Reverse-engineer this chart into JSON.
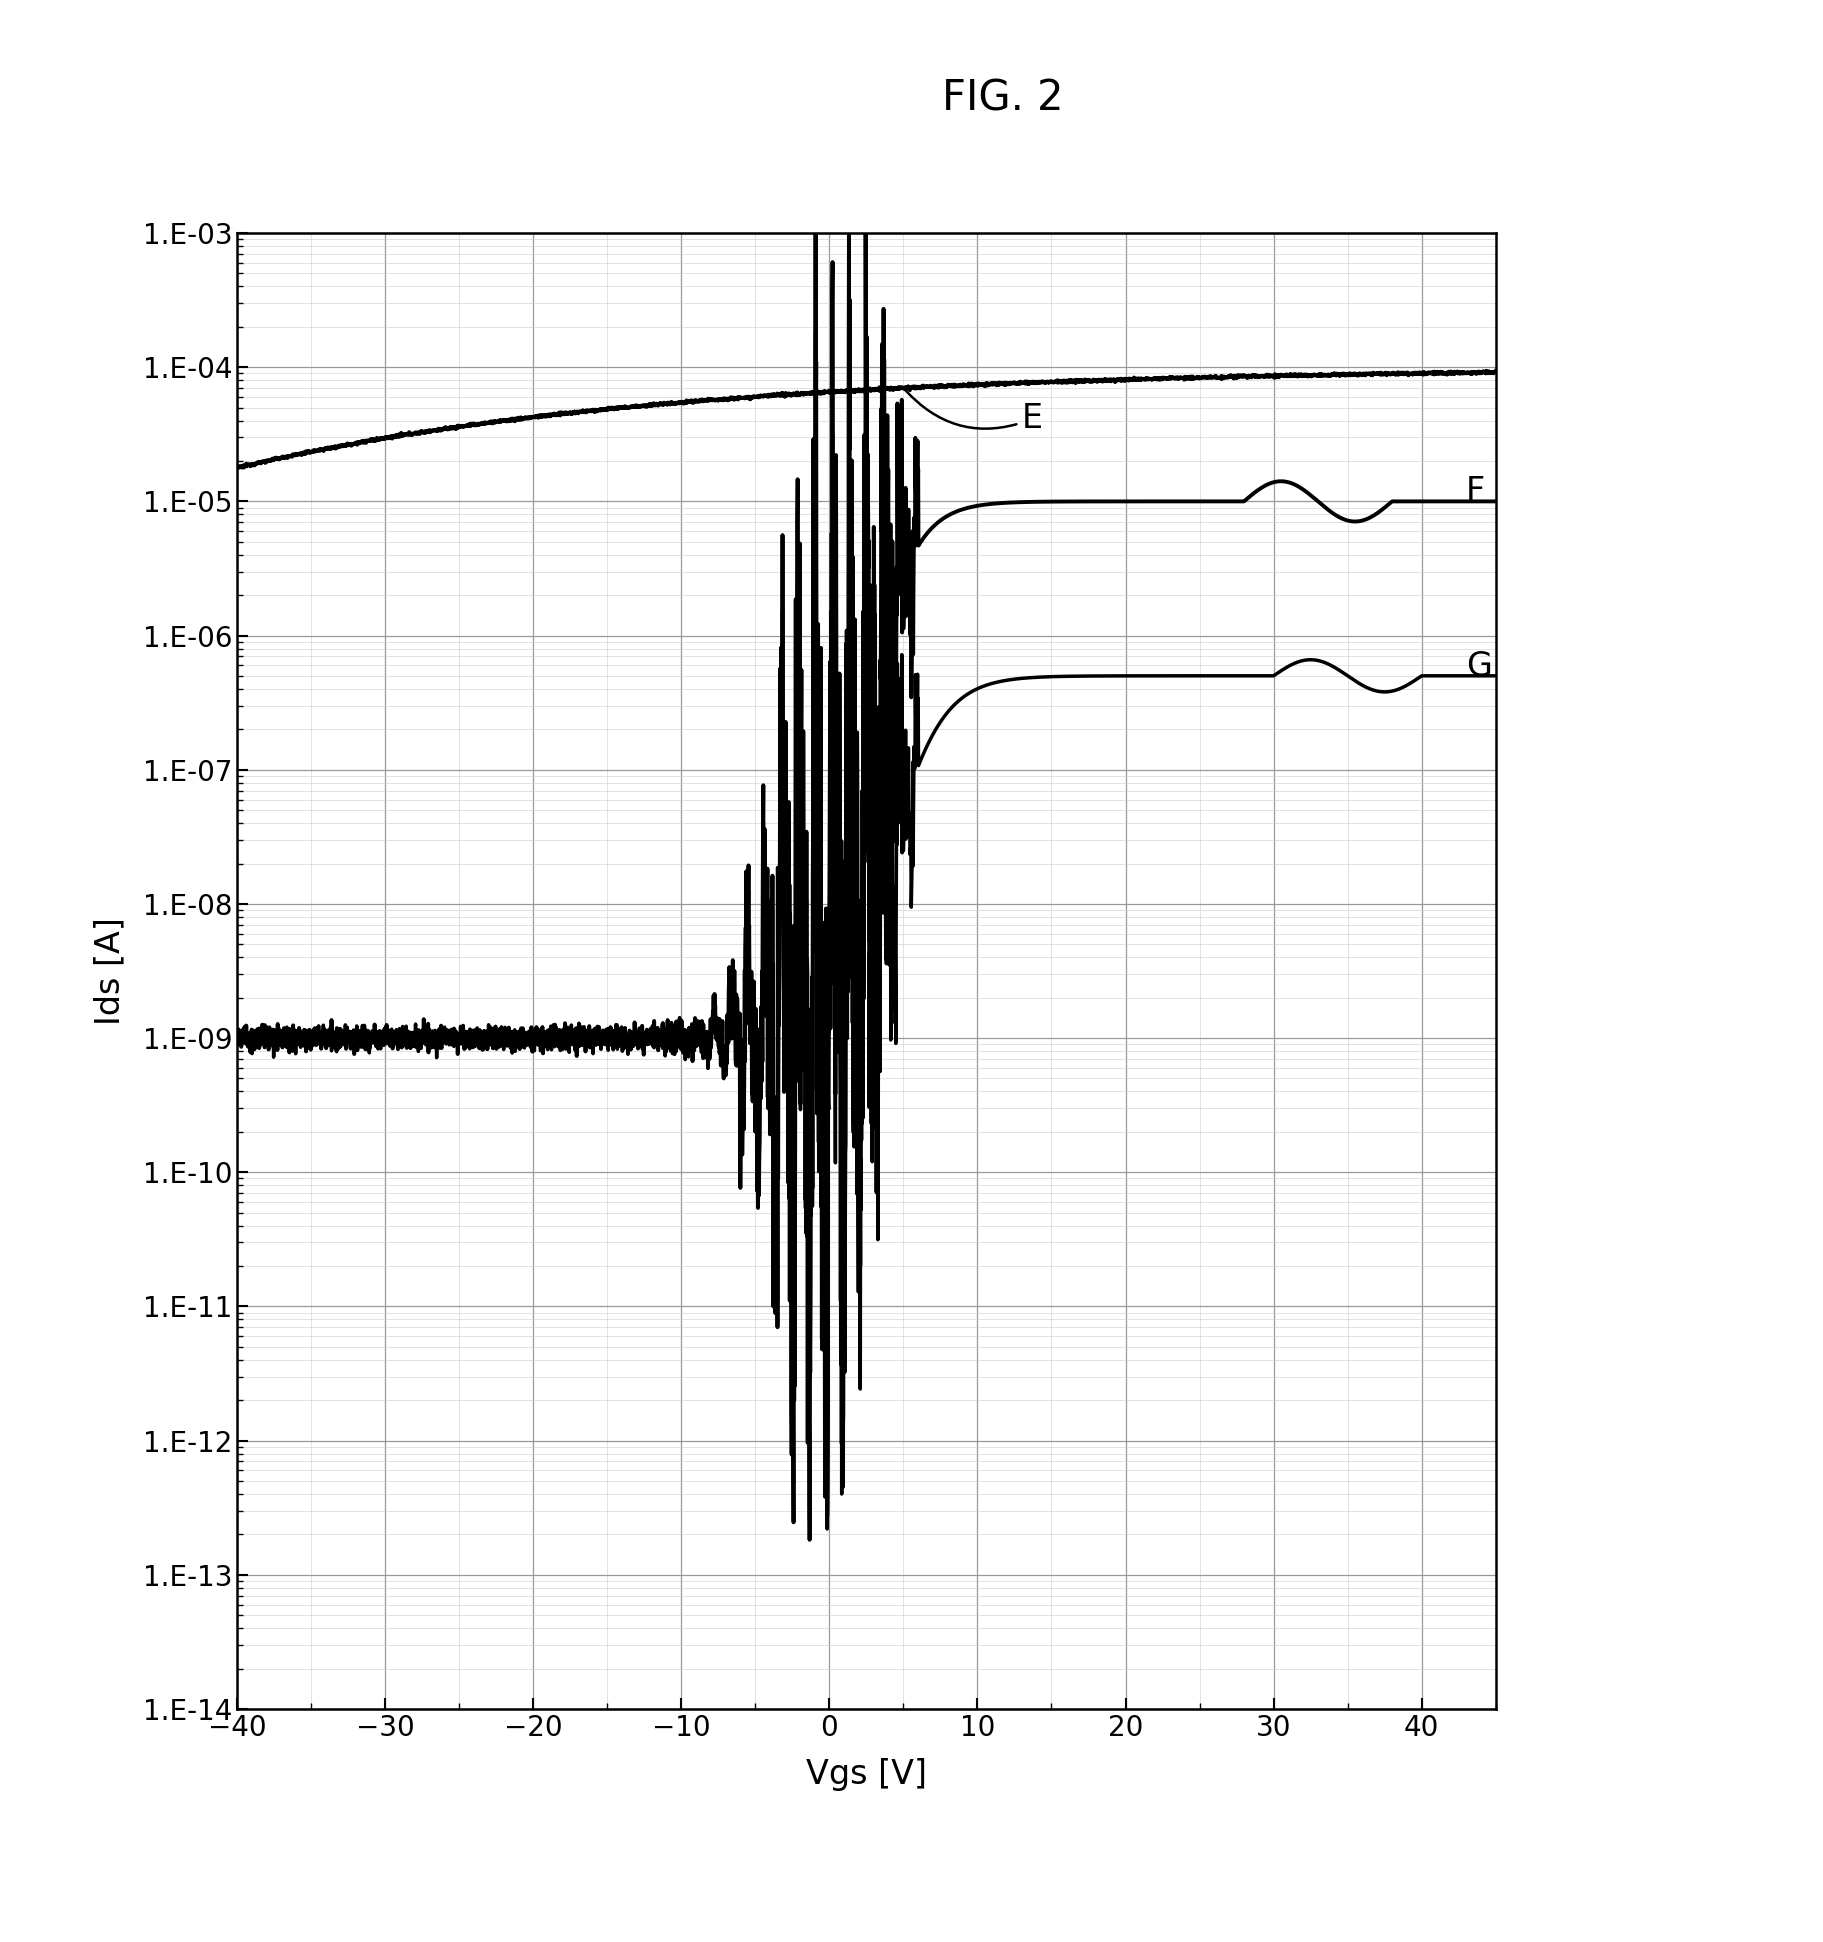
{
  "title": "FIG. 2",
  "xlabel": "Vgs [V]",
  "ylabel": "Ids [A]",
  "xlim": [
    -40,
    45
  ],
  "ylim_log": [
    -14,
    -3
  ],
  "xticks": [
    -40,
    -30,
    -20,
    -10,
    0,
    10,
    20,
    30,
    40
  ],
  "ytick_labels": [
    "1.E-03",
    "1.E-04",
    "1.E-05",
    "1.E-06",
    "1.E-07",
    "1.E-08",
    "1.E-09",
    "1.E-10",
    "1.E-11",
    "1.E-12",
    "1.E-13",
    "1.E-14"
  ],
  "ytick_values": [
    -3,
    -4,
    -5,
    -6,
    -7,
    -8,
    -9,
    -10,
    -11,
    -12,
    -13,
    -14
  ],
  "curve_labels": [
    "E",
    "F",
    "G"
  ],
  "line_color": "#000000",
  "line_width": 2.8,
  "background_color": "#ffffff",
  "title_fontsize": 30,
  "axis_label_fontsize": 24,
  "tick_fontsize": 20,
  "annotation_fontsize": 24,
  "grid_color_major": "#999999",
  "grid_color_minor": "#cccccc"
}
